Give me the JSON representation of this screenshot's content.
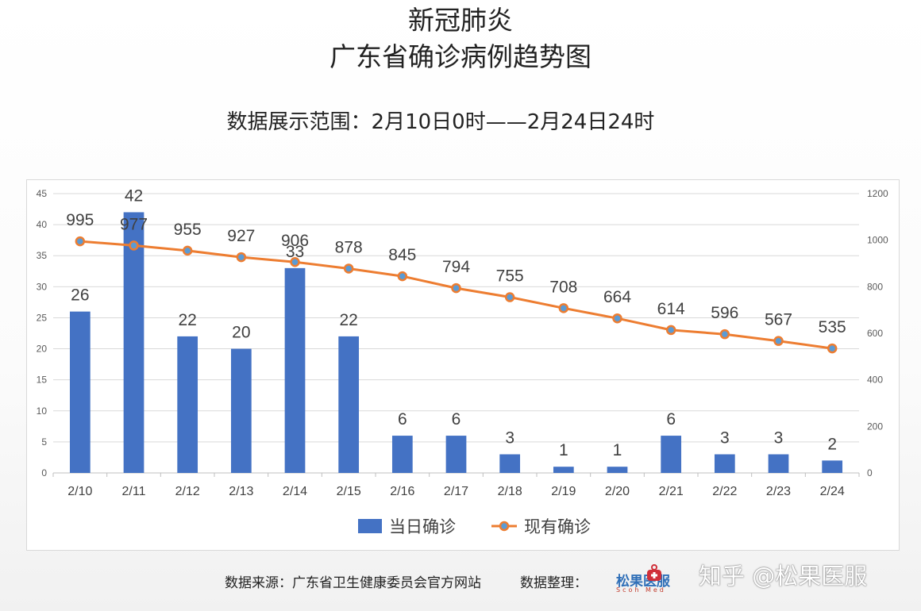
{
  "title_line1": "新冠肺炎",
  "title_line2": "广东省确诊病例趋势图",
  "subtitle": "数据展示范围：2月10日0时——2月24日24时",
  "chart_data": {
    "type": "bar",
    "categories": [
      "2/10",
      "2/11",
      "2/12",
      "2/13",
      "2/14",
      "2/15",
      "2/16",
      "2/17",
      "2/18",
      "2/19",
      "2/20",
      "2/21",
      "2/22",
      "2/23",
      "2/24"
    ],
    "series": [
      {
        "name": "当日确诊",
        "type": "bar",
        "axis": "left",
        "color": "#4472C4",
        "values": [
          26,
          42,
          22,
          20,
          33,
          22,
          6,
          6,
          3,
          1,
          1,
          6,
          3,
          3,
          2
        ]
      },
      {
        "name": "现有确诊",
        "type": "line",
        "axis": "right",
        "color": "#ED7D31",
        "values": [
          995,
          977,
          955,
          927,
          906,
          878,
          845,
          794,
          755,
          708,
          664,
          614,
          596,
          567,
          535
        ]
      }
    ],
    "y_left": {
      "min": 0,
      "max": 45,
      "ticks": [
        0,
        5,
        10,
        15,
        20,
        25,
        30,
        35,
        40,
        45
      ]
    },
    "y_right": {
      "min": 0,
      "max": 1200,
      "ticks": [
        0,
        200,
        400,
        600,
        800,
        1000,
        1200
      ]
    },
    "grid": true,
    "legend_position": "bottom"
  },
  "footer": {
    "source": "数据来源：广东省卫生健康委员会官方网站",
    "organizer_label": "数据整理：",
    "logo_text": "松果医服",
    "logo_sub": "Scoh Med",
    "watermark": "知乎 @松果医服"
  }
}
